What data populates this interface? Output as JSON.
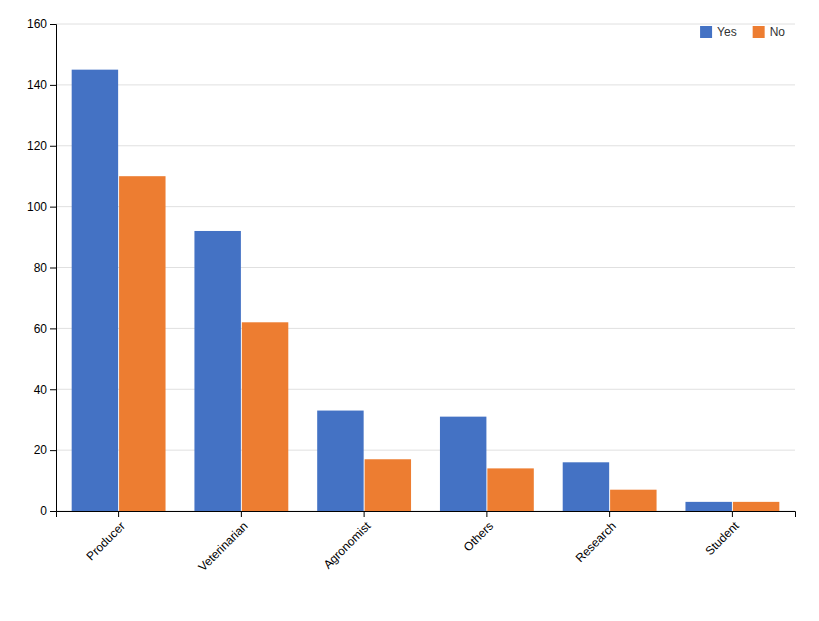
{
  "chart_data": {
    "type": "bar",
    "categories": [
      "Producer",
      "Veterinarian",
      "Agronomist",
      "Others",
      "Research",
      "Student"
    ],
    "series": [
      {
        "name": "Yes",
        "color": "#4472C4",
        "values": [
          145,
          92,
          33,
          31,
          16,
          3
        ]
      },
      {
        "name": "No",
        "color": "#ED7D31",
        "values": [
          110,
          62,
          17,
          14,
          7,
          3
        ]
      }
    ],
    "ylim": [
      0,
      160
    ],
    "yticks": [
      0,
      20,
      40,
      60,
      80,
      100,
      120,
      140,
      160
    ],
    "grid": true,
    "legend": "top-right"
  }
}
